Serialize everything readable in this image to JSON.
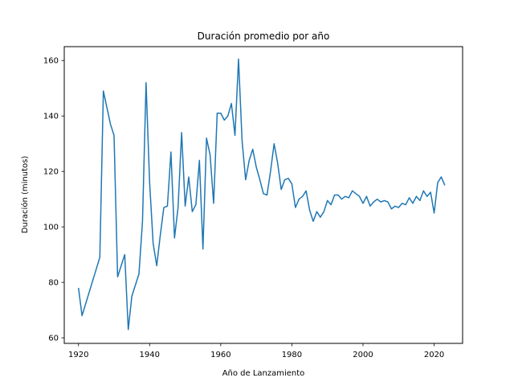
{
  "chart_data": {
    "type": "line",
    "title": "Duración promedio por año",
    "xlabel": "Año de Lanzamiento",
    "ylabel": "Duración (minutos)",
    "xlim": [
      1916,
      2028
    ],
    "ylim": [
      58,
      165
    ],
    "xticks": [
      1920,
      1940,
      1960,
      1980,
      2000,
      2020
    ],
    "yticks": [
      60,
      80,
      100,
      120,
      140,
      160
    ],
    "grid": false,
    "line_color": "#1f77b4",
    "series": [
      {
        "x": [
          1920,
          1921,
          1926,
          1927,
          1929,
          1930,
          1931,
          1933,
          1934,
          1935,
          1937,
          1938,
          1939,
          1940,
          1941,
          1942,
          1943,
          1944,
          1945,
          1946,
          1947,
          1948,
          1949,
          1950,
          1951,
          1952,
          1953,
          1954,
          1955,
          1956,
          1957,
          1958,
          1959,
          1960,
          1961,
          1962,
          1963,
          1964,
          1965,
          1966,
          1967,
          1968,
          1969,
          1970,
          1971,
          1972,
          1973,
          1974,
          1975,
          1976,
          1977,
          1978,
          1979,
          1980,
          1981,
          1982,
          1983,
          1984,
          1985,
          1986,
          1987,
          1988,
          1989,
          1990,
          1991,
          1992,
          1993,
          1994,
          1995,
          1996,
          1997,
          1998,
          1999,
          2000,
          2001,
          2002,
          2003,
          2004,
          2005,
          2006,
          2007,
          2008,
          2009,
          2010,
          2011,
          2012,
          2013,
          2014,
          2015,
          2016,
          2017,
          2018,
          2019,
          2020,
          2021,
          2022,
          2023
        ],
        "values": [
          78,
          68,
          89,
          149,
          137,
          133,
          82,
          90,
          63,
          75,
          83,
          102,
          152,
          116,
          94,
          86,
          97,
          107,
          107.5,
          127,
          96,
          107,
          134,
          107.5,
          118,
          105.5,
          108,
          124,
          92,
          132,
          126,
          108.5,
          141,
          141,
          138.5,
          140,
          144.5,
          133,
          160.5,
          131,
          117,
          124,
          128,
          121.5,
          117,
          112,
          111.5,
          120,
          130,
          123,
          113.5,
          117,
          117.5,
          115.5,
          107,
          110,
          111,
          113,
          106,
          102,
          105.5,
          103.5,
          105.5,
          109.5,
          108,
          111.5,
          111.5,
          110,
          111,
          110.5,
          113,
          112,
          111,
          108.5,
          111,
          107.5,
          109,
          110,
          109,
          109.5,
          109,
          106.5,
          107.5,
          107,
          108.5,
          108,
          110.5,
          108.5,
          111,
          109.5,
          113,
          111,
          112.5,
          105,
          116,
          118,
          115
        ]
      }
    ]
  }
}
